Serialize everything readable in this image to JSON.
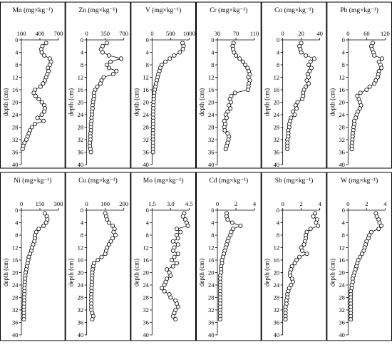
{
  "figure": {
    "depth_label": "depth (cm)",
    "depth_ticks": [
      0,
      4,
      8,
      12,
      16,
      20,
      24,
      28,
      32,
      36,
      40
    ],
    "colors": {
      "line": "#000000",
      "marker_fill": "#ffffff",
      "frame": "#000000",
      "background": "#ffffff"
    }
  },
  "chart_data": [
    {
      "type": "line",
      "element": "Mn",
      "title": "Mn (mg×kg⁻¹)",
      "ylabel": "depth (cm)",
      "xlim": [
        100,
        700
      ],
      "xticks": [
        100,
        400,
        700
      ],
      "ylim": [
        0,
        40
      ],
      "x": [
        500,
        440,
        420,
        430,
        470,
        560,
        580,
        560,
        530,
        540,
        520,
        500,
        480,
        450,
        410,
        320,
        300,
        330,
        380,
        430,
        470,
        480,
        470,
        430,
        360,
        460,
        320,
        270,
        240,
        220,
        200,
        180,
        150,
        130,
        120
      ],
      "y": [
        1,
        2,
        3,
        4,
        5,
        6,
        7,
        8,
        9,
        10,
        11,
        12,
        13,
        14,
        15,
        16,
        17,
        18,
        19,
        20,
        21,
        22,
        23,
        24,
        25,
        26,
        27,
        28,
        29,
        30,
        31,
        32,
        33,
        34,
        35
      ]
    },
    {
      "type": "line",
      "element": "Zn",
      "title": "Zn (mg×kg⁻¹)",
      "ylabel": "depth (cm)",
      "xlim": [
        0,
        700
      ],
      "xticks": [
        0,
        350,
        700
      ],
      "ylim": [
        0,
        40
      ],
      "x": [
        380,
        300,
        270,
        300,
        420,
        650,
        450,
        380,
        420,
        560,
        500,
        320,
        280,
        260,
        200,
        160,
        140,
        140,
        130,
        120,
        110,
        110,
        100,
        100,
        90,
        90,
        80,
        80,
        80,
        70,
        70,
        70,
        60,
        60,
        70,
        80
      ],
      "y": [
        1,
        2,
        3,
        4,
        5,
        6,
        7,
        8,
        9,
        10,
        11,
        12,
        13,
        14,
        15,
        16,
        17,
        18,
        19,
        20,
        21,
        22,
        23,
        24,
        25,
        26,
        27,
        28,
        29,
        30,
        31,
        32,
        33,
        34,
        35,
        36
      ]
    },
    {
      "type": "line",
      "element": "V",
      "title": "V (mg×kg⁻¹)",
      "ylabel": "depth (cm)",
      "xlim": [
        0,
        1000
      ],
      "xticks": [
        0,
        500,
        1000
      ],
      "ylim": [
        0,
        40
      ],
      "x": [
        820,
        850,
        830,
        750,
        600,
        480,
        360,
        260,
        220,
        200,
        170,
        150,
        130,
        110,
        90,
        75,
        60,
        50,
        45,
        40,
        35,
        32,
        30,
        30,
        28,
        28,
        28,
        26,
        26,
        26,
        25,
        25,
        25,
        25,
        25,
        25
      ],
      "y": [
        1,
        2,
        3,
        4,
        5,
        6,
        7,
        8,
        9,
        10,
        11,
        12,
        13,
        14,
        15,
        16,
        17,
        18,
        19,
        20,
        21,
        22,
        23,
        24,
        25,
        26,
        27,
        28,
        29,
        30,
        31,
        32,
        33,
        34,
        35,
        36
      ]
    },
    {
      "type": "line",
      "element": "Cr",
      "title": "Cr (mg×kg⁻¹)",
      "ylabel": "depth (cm)",
      "xlim": [
        30,
        110
      ],
      "xticks": [
        30,
        70,
        110
      ],
      "ylim": [
        0,
        40
      ],
      "x": [
        65,
        63,
        64,
        66,
        70,
        78,
        85,
        90,
        95,
        98,
        100,
        97,
        100,
        98,
        97,
        96,
        68,
        60,
        57,
        59,
        55,
        58,
        52,
        48,
        50,
        45,
        47,
        45,
        46,
        52,
        55,
        54,
        52,
        50,
        48
      ],
      "y": [
        1,
        2,
        3,
        4,
        5,
        6,
        7,
        8,
        9,
        10,
        11,
        12,
        13,
        14,
        15,
        16,
        17,
        18,
        19,
        20,
        21,
        22,
        23,
        24,
        25,
        26,
        27,
        28,
        29,
        30,
        31,
        32,
        33,
        34,
        35
      ]
    },
    {
      "type": "line",
      "element": "Co",
      "title": "Co (mg×kg⁻¹)",
      "ylabel": "depth (cm)",
      "xlim": [
        0,
        40
      ],
      "xticks": [
        0,
        20,
        40
      ],
      "ylim": [
        0,
        40
      ],
      "x": [
        20,
        18,
        19,
        20,
        25,
        34,
        30,
        28,
        31,
        29,
        27,
        28,
        26,
        28,
        25,
        23,
        22,
        22,
        21,
        16,
        14,
        15,
        11,
        13,
        9,
        8,
        7,
        7,
        6,
        6,
        6,
        5,
        5,
        5,
        5
      ],
      "y": [
        1,
        2,
        3,
        4,
        5,
        6,
        7,
        8,
        9,
        10,
        11,
        12,
        13,
        14,
        15,
        16,
        17,
        18,
        19,
        20,
        21,
        22,
        23,
        24,
        25,
        26,
        27,
        28,
        29,
        30,
        31,
        32,
        33,
        34,
        35
      ]
    },
    {
      "type": "line",
      "element": "Pb",
      "title": "Pb (mg×kg⁻¹)",
      "ylabel": "depth (cm)",
      "xlim": [
        0,
        120
      ],
      "xticks": [
        0,
        60,
        120
      ],
      "ylim": [
        0,
        40
      ],
      "x": [
        80,
        75,
        78,
        82,
        85,
        110,
        100,
        105,
        108,
        100,
        98,
        96,
        90,
        85,
        70,
        60,
        40,
        30,
        35,
        38,
        42,
        38,
        32,
        28,
        25,
        20,
        20,
        18,
        17,
        15,
        15,
        14,
        13,
        12,
        12
      ],
      "y": [
        1,
        2,
        3,
        4,
        5,
        6,
        7,
        8,
        9,
        10,
        11,
        12,
        13,
        14,
        15,
        16,
        17,
        18,
        19,
        20,
        21,
        22,
        23,
        24,
        25,
        26,
        27,
        28,
        29,
        30,
        31,
        32,
        33,
        34,
        35
      ]
    },
    {
      "type": "line",
      "element": "Ni",
      "title": "Ni (mg×kg⁻¹)",
      "ylabel": "depth (cm)",
      "xlim": [
        0,
        300
      ],
      "xticks": [
        0,
        150,
        300
      ],
      "ylim": [
        0,
        40
      ],
      "x": [
        190,
        205,
        210,
        200,
        180,
        140,
        120,
        110,
        110,
        105,
        95,
        85,
        80,
        70,
        60,
        55,
        50,
        45,
        40,
        35,
        32,
        30,
        28,
        26,
        25,
        24,
        23,
        22,
        22,
        21,
        20,
        20,
        20,
        20,
        20
      ],
      "y": [
        1,
        2,
        3,
        4,
        5,
        6,
        7,
        8,
        9,
        10,
        11,
        12,
        13,
        14,
        15,
        16,
        17,
        18,
        19,
        20,
        21,
        22,
        23,
        24,
        25,
        26,
        27,
        28,
        29,
        30,
        31,
        32,
        33,
        34,
        35
      ]
    },
    {
      "type": "line",
      "element": "Cu",
      "title": "Cu (mg×kg⁻¹)",
      "ylabel": "depth (cm)",
      "xlim": [
        0,
        200
      ],
      "xticks": [
        0,
        100,
        200
      ],
      "ylim": [
        0,
        40
      ],
      "x": [
        100,
        105,
        110,
        120,
        140,
        150,
        145,
        155,
        140,
        130,
        120,
        110,
        105,
        100,
        80,
        60,
        40,
        35,
        32,
        30,
        30,
        28,
        28,
        27,
        26,
        26,
        25,
        25,
        25,
        25,
        25,
        25,
        30,
        35,
        30
      ],
      "y": [
        1,
        2,
        3,
        4,
        5,
        6,
        7,
        8,
        9,
        10,
        11,
        12,
        13,
        14,
        15,
        16,
        17,
        18,
        19,
        20,
        21,
        22,
        23,
        24,
        25,
        26,
        27,
        28,
        29,
        30,
        31,
        32,
        33,
        34,
        35
      ]
    },
    {
      "type": "line",
      "element": "Mo",
      "title": "Mo (mg×kg⁻¹)",
      "ylabel": "depth (cm)",
      "xlim": [
        1.5,
        4.5
      ],
      "xticks": [
        1.5,
        3.0,
        4.5
      ],
      "ylim": [
        0,
        40
      ],
      "x": [
        4.1,
        4.0,
        4.2,
        4.3,
        4.4,
        3.5,
        3.8,
        3.5,
        3.6,
        3.2,
        3.6,
        3.3,
        3.2,
        3.6,
        3.3,
        3.1,
        3.5,
        3.2,
        2.7,
        2.9,
        3.0,
        2.7,
        2.6,
        2.5,
        2.3,
        2.5,
        2.9,
        3.0,
        3.4,
        3.5,
        3.6,
        3.4,
        3.3,
        3.2,
        3.4
      ],
      "y": [
        1,
        2,
        3,
        4,
        5,
        6,
        7,
        8,
        9,
        10,
        11,
        12,
        13,
        14,
        15,
        16,
        17,
        18,
        19,
        20,
        21,
        22,
        23,
        24,
        25,
        26,
        27,
        28,
        29,
        30,
        31,
        32,
        33,
        34,
        35
      ]
    },
    {
      "type": "line",
      "element": "Cd",
      "title": "Cd (mg×kg⁻¹)",
      "ylabel": "depth (cm)",
      "xlim": [
        0,
        4
      ],
      "xticks": [
        0,
        2,
        4
      ],
      "ylim": [
        0,
        40
      ],
      "x": [
        1.0,
        1.0,
        1.1,
        1.6,
        2.5,
        1.7,
        1.5,
        1.4,
        1.2,
        1.1,
        1.0,
        0.9,
        0.8,
        0.7,
        0.6,
        0.5,
        0.5,
        0.4,
        0.4,
        0.4,
        0.3,
        0.3,
        0.3,
        0.3,
        0.3,
        0.3,
        0.3,
        0.3,
        0.3,
        0.3,
        0.3,
        0.3,
        0.3,
        0.3,
        0.3
      ],
      "y": [
        1,
        2,
        3,
        4,
        5,
        6,
        7,
        8,
        9,
        10,
        11,
        12,
        13,
        14,
        15,
        16,
        17,
        18,
        19,
        20,
        21,
        22,
        23,
        24,
        25,
        26,
        27,
        28,
        29,
        30,
        31,
        32,
        33,
        34,
        35
      ]
    },
    {
      "type": "line",
      "element": "Sb",
      "title": "Sb (mg×kg⁻¹)",
      "ylabel": "depth (cm)",
      "xlim": [
        0,
        4
      ],
      "xticks": [
        0.0,
        2.0,
        4.0
      ],
      "ylim": [
        0,
        40
      ],
      "x": [
        3.5,
        3.3,
        3.7,
        3.6,
        3.8,
        3.0,
        2.6,
        2.5,
        2.5,
        2.4,
        2.3,
        2.0,
        2.1,
        2.6,
        1.8,
        1.5,
        1.3,
        1.0,
        0.9,
        0.8,
        0.8,
        1.0,
        1.1,
        0.9,
        0.7,
        0.6,
        0.5,
        0.5,
        0.4,
        0.4,
        0.3,
        0.3,
        0.3,
        0.3,
        0.3
      ],
      "y": [
        1,
        2,
        3,
        4,
        5,
        6,
        7,
        8,
        9,
        10,
        11,
        12,
        13,
        14,
        15,
        16,
        17,
        18,
        19,
        20,
        21,
        22,
        23,
        24,
        25,
        26,
        27,
        28,
        29,
        30,
        31,
        32,
        33,
        34,
        35
      ]
    },
    {
      "type": "line",
      "element": "W",
      "title": "W (mg×kg⁻¹)",
      "ylabel": "depth (cm)",
      "xlim": [
        0,
        4
      ],
      "xticks": [
        0.0,
        2.0,
        4.0
      ],
      "ylim": [
        0,
        40
      ],
      "x": [
        3.0,
        3.1,
        3.3,
        3.4,
        3.6,
        3.3,
        2.5,
        2.3,
        2.2,
        2.0,
        1.9,
        1.8,
        1.7,
        1.5,
        1.3,
        1.1,
        1.0,
        0.9,
        0.8,
        0.7,
        0.6,
        0.5,
        0.5,
        0.4,
        0.4,
        0.3,
        0.3,
        0.3,
        0.3,
        0.3,
        0.3,
        0.3,
        0.3,
        0.3,
        0.3
      ],
      "y": [
        1,
        2,
        3,
        4,
        5,
        6,
        7,
        8,
        9,
        10,
        11,
        12,
        13,
        14,
        15,
        16,
        17,
        18,
        19,
        20,
        21,
        22,
        23,
        24,
        25,
        26,
        27,
        28,
        29,
        30,
        31,
        32,
        33,
        34,
        35
      ]
    }
  ]
}
